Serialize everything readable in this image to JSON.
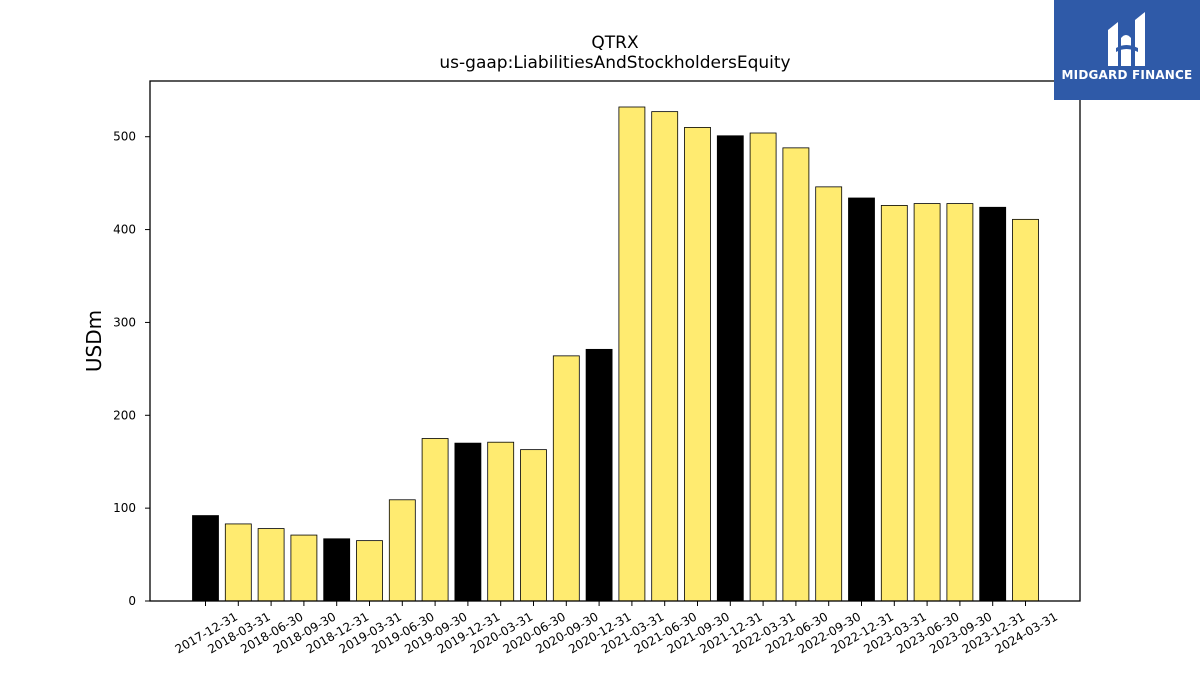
{
  "brand": {
    "name": "MIDGARD FINANCE",
    "icon": "midgard-logo-icon"
  },
  "chart_data": {
    "type": "bar",
    "title": "QTRX",
    "subtitle": "us-gaap:LiabilitiesAndStockholdersEquity",
    "ylabel": "USDm",
    "xlabel": "",
    "ylim": [
      0,
      560
    ],
    "yticks": [
      0,
      100,
      200,
      300,
      400,
      500
    ],
    "grid": false,
    "colors": {
      "annual": "#000000",
      "quarterly": "#ffeb70",
      "edge": "#000000"
    },
    "categories": [
      "2017-12-31",
      "2018-03-31",
      "2018-06-30",
      "2018-09-30",
      "2018-12-31",
      "2019-03-31",
      "2019-06-30",
      "2019-09-30",
      "2019-12-31",
      "2020-03-31",
      "2020-06-30",
      "2020-09-30",
      "2020-12-31",
      "2021-03-31",
      "2021-06-30",
      "2021-09-30",
      "2021-12-31",
      "2022-03-31",
      "2022-06-30",
      "2022-09-30",
      "2022-12-31",
      "2023-03-31",
      "2023-06-30",
      "2023-09-30",
      "2023-12-31",
      "2024-03-31"
    ],
    "values": [
      92,
      83,
      78,
      71,
      67,
      65,
      109,
      175,
      170,
      171,
      163,
      264,
      271,
      532,
      527,
      510,
      501,
      504,
      488,
      446,
      434,
      426,
      428,
      428,
      424,
      411
    ]
  }
}
